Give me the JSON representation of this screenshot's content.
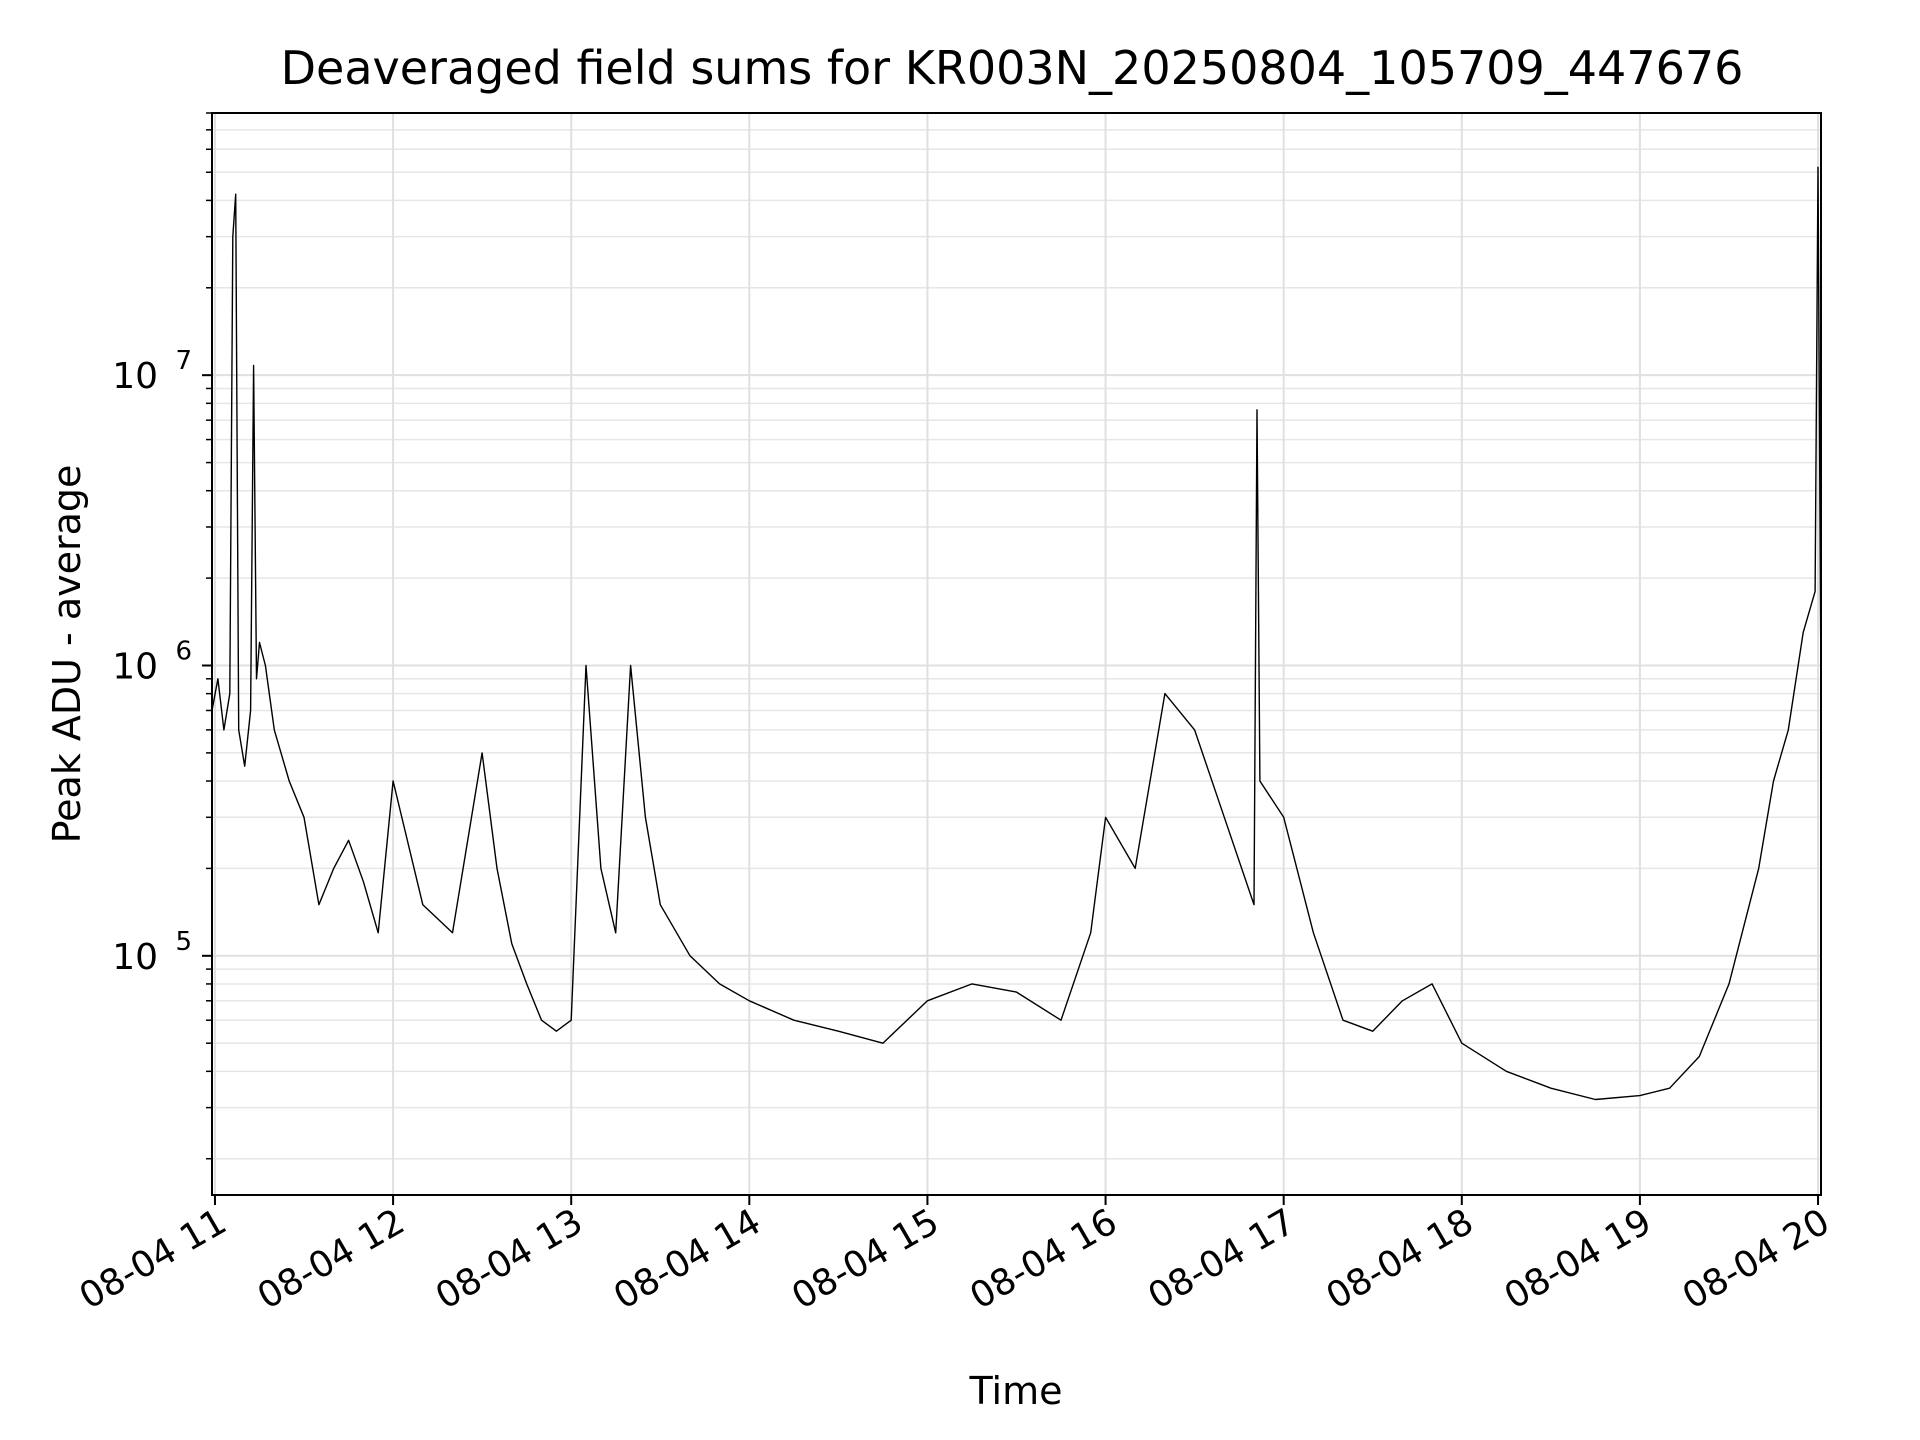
{
  "chart_data": {
    "type": "line",
    "title": "Deaveraged field sums for KR003N_20250804_105709_447676",
    "xlabel": "Time",
    "ylabel": "Peak ADU - average",
    "xlim": [
      "2025-08-04T10:59:00",
      "2025-08-04T20:01:00"
    ],
    "ylim": [
      15000,
      80000000
    ],
    "yscale": "log",
    "grid": true,
    "line_color": "#000000",
    "x_ticks": [
      {
        "value": "2025-08-04T11:00:00",
        "label": "08-04 11"
      },
      {
        "value": "2025-08-04T12:00:00",
        "label": "08-04 12"
      },
      {
        "value": "2025-08-04T13:00:00",
        "label": "08-04 13"
      },
      {
        "value": "2025-08-04T14:00:00",
        "label": "08-04 14"
      },
      {
        "value": "2025-08-04T15:00:00",
        "label": "08-04 15"
      },
      {
        "value": "2025-08-04T16:00:00",
        "label": "08-04 16"
      },
      {
        "value": "2025-08-04T17:00:00",
        "label": "08-04 17"
      },
      {
        "value": "2025-08-04T18:00:00",
        "label": "08-04 18"
      },
      {
        "value": "2025-08-04T19:00:00",
        "label": "08-04 19"
      },
      {
        "value": "2025-08-04T20:00:00",
        "label": "08-04 20"
      }
    ],
    "y_ticks": [
      {
        "value": 100000,
        "base": "10",
        "exp": "5"
      },
      {
        "value": 1000000,
        "base": "10",
        "exp": "6"
      },
      {
        "value": 10000000,
        "base": "10",
        "exp": "7"
      }
    ],
    "series": [
      {
        "x": [
          "2025-08-04T10:59:00",
          "2025-08-04T11:01:00",
          "2025-08-04T11:03:00",
          "2025-08-04T11:05:00",
          "2025-08-04T11:06:00",
          "2025-08-04T11:07:00",
          "2025-08-04T11:08:00",
          "2025-08-04T11:10:00",
          "2025-08-04T11:12:00",
          "2025-08-04T11:13:00",
          "2025-08-04T11:14:00",
          "2025-08-04T11:15:00",
          "2025-08-04T11:17:00",
          "2025-08-04T11:20:00",
          "2025-08-04T11:25:00",
          "2025-08-04T11:30:00",
          "2025-08-04T11:35:00",
          "2025-08-04T11:40:00",
          "2025-08-04T11:45:00",
          "2025-08-04T11:50:00",
          "2025-08-04T11:55:00",
          "2025-08-04T12:00:00",
          "2025-08-04T12:10:00",
          "2025-08-04T12:20:00",
          "2025-08-04T12:30:00",
          "2025-08-04T12:35:00",
          "2025-08-04T12:40:00",
          "2025-08-04T12:45:00",
          "2025-08-04T12:50:00",
          "2025-08-04T12:55:00",
          "2025-08-04T13:00:00",
          "2025-08-04T13:05:00",
          "2025-08-04T13:10:00",
          "2025-08-04T13:15:00",
          "2025-08-04T13:20:00",
          "2025-08-04T13:25:00",
          "2025-08-04T13:30:00",
          "2025-08-04T13:40:00",
          "2025-08-04T13:50:00",
          "2025-08-04T14:00:00",
          "2025-08-04T14:15:00",
          "2025-08-04T14:30:00",
          "2025-08-04T14:45:00",
          "2025-08-04T15:00:00",
          "2025-08-04T15:15:00",
          "2025-08-04T15:30:00",
          "2025-08-04T15:45:00",
          "2025-08-04T15:55:00",
          "2025-08-04T16:00:00",
          "2025-08-04T16:10:00",
          "2025-08-04T16:20:00",
          "2025-08-04T16:30:00",
          "2025-08-04T16:40:00",
          "2025-08-04T16:50:00",
          "2025-08-04T16:51:00",
          "2025-08-04T16:52:00",
          "2025-08-04T17:00:00",
          "2025-08-04T17:10:00",
          "2025-08-04T17:20:00",
          "2025-08-04T17:30:00",
          "2025-08-04T17:40:00",
          "2025-08-04T17:50:00",
          "2025-08-04T18:00:00",
          "2025-08-04T18:15:00",
          "2025-08-04T18:30:00",
          "2025-08-04T18:45:00",
          "2025-08-04T19:00:00",
          "2025-08-04T19:10:00",
          "2025-08-04T19:20:00",
          "2025-08-04T19:30:00",
          "2025-08-04T19:40:00",
          "2025-08-04T19:45:00",
          "2025-08-04T19:50:00",
          "2025-08-04T19:55:00",
          "2025-08-04T19:59:00",
          "2025-08-04T20:00:00",
          "2025-08-04T20:01:00"
        ],
        "y": [
          700000,
          900000,
          600000,
          800000,
          30000000,
          42000000,
          600000,
          450000,
          700000,
          10800000,
          900000,
          1200000,
          1000000,
          600000,
          400000,
          300000,
          150000,
          200000,
          250000,
          180000,
          120000,
          400000,
          150000,
          120000,
          500000,
          200000,
          110000,
          80000,
          60000,
          55000,
          60000,
          1000000,
          200000,
          120000,
          1000000,
          300000,
          150000,
          100000,
          80000,
          70000,
          60000,
          55000,
          50000,
          70000,
          80000,
          75000,
          60000,
          120000,
          300000,
          200000,
          800000,
          600000,
          300000,
          150000,
          7600000,
          400000,
          300000,
          120000,
          60000,
          55000,
          70000,
          80000,
          50000,
          40000,
          35000,
          32000,
          33000,
          35000,
          45000,
          80000,
          200000,
          400000,
          600000,
          1300000,
          1800000,
          52000000,
          800000
        ]
      }
    ]
  }
}
